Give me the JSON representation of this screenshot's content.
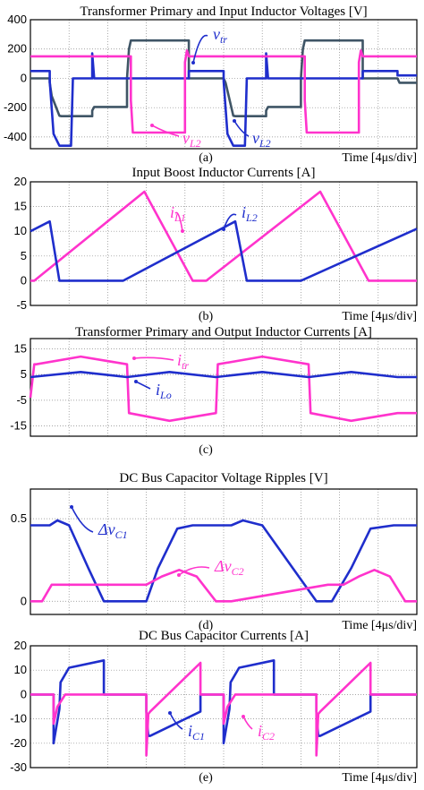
{
  "chart_data": [
    {
      "type": "line",
      "label": "(a)",
      "title": "Transformer Primary and Input Inductor Voltages [V]",
      "xlabel": "Time [4μs/div]",
      "ylim": [
        -480,
        400
      ],
      "yticks": [
        400,
        200,
        0,
        -200,
        -400
      ],
      "xlim": [
        0,
        10
      ],
      "series": [
        {
          "name": "v_tr",
          "color": "#3f5566",
          "x": [
            0,
            0.5,
            0.5,
            0.55,
            0.75,
            0.8,
            1.6,
            1.6,
            1.65,
            2.5,
            2.5,
            2.55,
            2.6,
            2.8,
            4.1,
            4.1,
            4.15,
            5.0,
            5.0,
            5.05,
            5.25,
            5.3,
            6.1,
            6.1,
            6.15,
            7.0,
            7.0,
            7.05,
            7.1,
            7.3,
            8.6,
            8.6,
            8.65,
            9.5,
            9.5,
            9.55,
            10
          ],
          "y": [
            0,
            0,
            -30,
            -120,
            -255,
            -258,
            -258,
            -220,
            -195,
            -195,
            0,
            200,
            258,
            258,
            258,
            0,
            0,
            0,
            0,
            -30,
            -255,
            -258,
            -258,
            -220,
            -195,
            -195,
            0,
            200,
            258,
            258,
            258,
            0,
            0,
            0,
            0,
            -30,
            -30
          ]
        },
        {
          "name": "v_L2",
          "color": "#1f2ecc",
          "x": [
            0,
            0.5,
            0.5,
            0.6,
            0.75,
            0.8,
            0.8,
            1.05,
            1.1,
            1.6,
            1.6,
            1.65,
            1.66,
            2.5,
            2.5,
            4.1,
            4.1,
            4.15,
            5.0,
            5.0,
            5.1,
            5.25,
            5.3,
            5.3,
            5.55,
            5.6,
            6.1,
            6.1,
            6.15,
            6.16,
            7.0,
            7.0,
            8.6,
            8.6,
            8.65,
            9.5,
            9.5,
            10
          ],
          "y": [
            50,
            50,
            -20,
            -380,
            -460,
            -460,
            -460,
            -460,
            0,
            0,
            170,
            0,
            0,
            0,
            0,
            0,
            50,
            50,
            50,
            -20,
            -380,
            -460,
            -460,
            -460,
            -460,
            0,
            0,
            170,
            0,
            0,
            0,
            0,
            0,
            50,
            50,
            50,
            20,
            20
          ]
        },
        {
          "name": "v_L2",
          "color": "#ff33cc",
          "x": [
            0,
            2.6,
            2.6,
            2.65,
            4.0,
            4.0,
            4.05,
            4.1,
            5.0,
            7.1,
            7.1,
            7.15,
            8.5,
            8.5,
            8.55,
            8.6,
            10
          ],
          "y": [
            150,
            150,
            -150,
            -370,
            -370,
            110,
            190,
            150,
            150,
            150,
            -150,
            -370,
            -370,
            110,
            190,
            150,
            150
          ]
        }
      ],
      "annotations": [
        {
          "text": "v",
          "sub": "tr",
          "color": "#1f2ecc"
        },
        {
          "text": "v",
          "sub": "L2",
          "color": "#ff33cc"
        },
        {
          "text": "v",
          "sub": "L2",
          "color": "#1f2ecc"
        }
      ]
    },
    {
      "type": "line",
      "label": "(b)",
      "title": "Input Boost Inductor Currents [A]",
      "xlabel": "Time [4μs/div]",
      "ylim": [
        -5,
        20
      ],
      "yticks": [
        20,
        15,
        10,
        5,
        0,
        -5
      ],
      "xlim": [
        0,
        10
      ],
      "series": [
        {
          "name": "i_L1",
          "color": "#ff33cc",
          "x": [
            0,
            0.1,
            2.95,
            4.2,
            4.55,
            7.5,
            8.75,
            9.1,
            10
          ],
          "y": [
            0,
            0,
            18,
            0,
            0,
            18,
            0,
            0,
            0
          ]
        },
        {
          "name": "i_L2",
          "color": "#1f2ecc",
          "x": [
            0,
            0.5,
            0.75,
            1.9,
            2.4,
            5.3,
            5.6,
            7.0,
            10
          ],
          "y": [
            10,
            12,
            0,
            0,
            0,
            12,
            0,
            0,
            10.5
          ]
        }
      ],
      "annotations": [
        {
          "text": "i",
          "sub": "L1",
          "color": "#ff33cc"
        },
        {
          "text": "i",
          "sub": "L2",
          "color": "#1f2ecc"
        }
      ]
    },
    {
      "type": "line",
      "label": "(c)",
      "title": "Transformer Primary and Output Inductor Currents [A]",
      "ylim": [
        -19,
        19
      ],
      "yticks": [
        15,
        5,
        -5,
        -15
      ],
      "xlim": [
        0,
        10
      ],
      "series": [
        {
          "name": "i_tr",
          "color": "#ff33cc",
          "x": [
            0,
            0.1,
            0.15,
            1.3,
            2.5,
            2.5,
            2.55,
            3.6,
            4.8,
            4.8,
            4.85,
            6.0,
            7.2,
            7.2,
            7.25,
            8.3,
            9.5,
            9.5,
            10
          ],
          "y": [
            -4,
            9,
            9,
            12,
            9,
            9,
            -10,
            -13,
            -10,
            -10,
            9,
            12,
            9,
            9,
            -10,
            -13,
            -10,
            -10,
            -10
          ]
        },
        {
          "name": "i_Lo",
          "color": "#1f2ecc",
          "x": [
            0,
            1.3,
            2.5,
            3.6,
            4.8,
            6.0,
            7.2,
            8.3,
            9.5,
            10
          ],
          "y": [
            4,
            6,
            4,
            6,
            4,
            6,
            4,
            6,
            4,
            4
          ]
        }
      ],
      "annotations": [
        {
          "text": "i",
          "sub": "tr",
          "color": "#ff33cc"
        },
        {
          "text": "i",
          "sub": "Lo",
          "color": "#1f2ecc"
        }
      ]
    },
    {
      "type": "line",
      "label": "(d)",
      "title": "DC Bus Capacitor Voltage Ripples [V]",
      "xlabel": "Time [4μs/div]",
      "ylim": [
        -0.08,
        0.68
      ],
      "yticks": [
        0.5,
        0
      ],
      "ytick_labels": [
        "0.5",
        "0"
      ],
      "xlim": [
        0,
        10
      ],
      "series": [
        {
          "name": "Δv_C1",
          "color": "#1f2ecc",
          "x": [
            0,
            0.5,
            0.7,
            1.0,
            1.5,
            1.9,
            2.4,
            3.0,
            3.3,
            3.8,
            4.2,
            5.2,
            5.5,
            6.0,
            7.4,
            7.8,
            8.3,
            8.8,
            9.4,
            10
          ],
          "y": [
            0.46,
            0.46,
            0.49,
            0.46,
            0.2,
            0.0,
            0.0,
            0.0,
            0.2,
            0.44,
            0.46,
            0.46,
            0.49,
            0.46,
            0.0,
            0.0,
            0.2,
            0.44,
            0.46,
            0.46
          ]
        },
        {
          "name": "Δv_C2",
          "color": "#ff33cc",
          "x": [
            0,
            0.3,
            0.55,
            0.9,
            3.0,
            3.4,
            3.85,
            4.3,
            4.8,
            5.2,
            7.7,
            8.1,
            8.5,
            8.9,
            9.3,
            9.7,
            10
          ],
          "y": [
            0,
            0,
            0.1,
            0.1,
            0.1,
            0.15,
            0.19,
            0.15,
            0.0,
            0.0,
            0.1,
            0.1,
            0.15,
            0.19,
            0.15,
            0.0,
            0.0
          ]
        }
      ],
      "annotations": [
        {
          "text": "Δv",
          "sub": "C1",
          "color": "#1f2ecc"
        },
        {
          "text": "Δv",
          "sub": "C2",
          "color": "#ff33cc"
        }
      ]
    },
    {
      "type": "line",
      "label": "(e)",
      "title": "DC Bus Capacitor Currents [A]",
      "xlabel": "Time [4μs/div]",
      "ylim": [
        -30,
        20
      ],
      "yticks": [
        20,
        10,
        0,
        -10,
        -20,
        -30
      ],
      "xlim": [
        0,
        10
      ],
      "series": [
        {
          "name": "i_C1",
          "color": "#1f2ecc",
          "x": [
            0,
            0.6,
            0.6,
            0.75,
            0.78,
            1.0,
            1.9,
            1.9,
            2.0,
            3.0,
            3.0,
            3.05,
            3.1,
            4.4,
            4.4,
            5.0,
            5.0,
            5.15,
            5.18,
            5.4,
            6.3,
            6.3,
            6.4,
            7.4,
            7.4,
            7.45,
            7.5,
            8.8,
            8.8,
            10
          ],
          "y": [
            0,
            0,
            -20,
            -6,
            5,
            11,
            14,
            0,
            0,
            0,
            -7,
            -17,
            -17,
            -7,
            0,
            0,
            -20,
            -6,
            5,
            11,
            14,
            0,
            0,
            0,
            -7,
            -17,
            -17,
            -7,
            0,
            0
          ]
        },
        {
          "name": "i_C2",
          "color": "#ff33cc",
          "x": [
            0,
            0.6,
            0.6,
            0.7,
            0.9,
            1.1,
            3.0,
            3.0,
            3.05,
            3.1,
            4.4,
            4.4,
            5.0,
            5.0,
            5.1,
            5.3,
            5.5,
            7.4,
            7.4,
            7.45,
            7.5,
            8.8,
            8.8,
            10
          ],
          "y": [
            0,
            0,
            -12,
            -5,
            0,
            0,
            0,
            -25,
            -8,
            -7,
            13,
            0,
            0,
            -12,
            -5,
            0,
            0,
            0,
            -25,
            -8,
            -7,
            13,
            0,
            0
          ]
        }
      ],
      "annotations": [
        {
          "text": "i",
          "sub": "C1",
          "color": "#1f2ecc"
        },
        {
          "text": "i",
          "sub": "C2",
          "color": "#ff33cc"
        }
      ]
    }
  ]
}
